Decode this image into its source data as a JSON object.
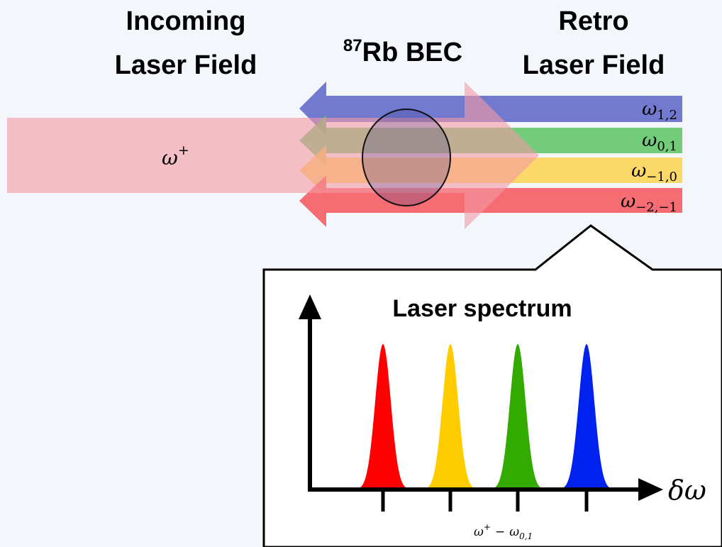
{
  "incoming_label": [
    "Incoming",
    "Laser Field"
  ],
  "bec_label": {
    "isotope": "87",
    "text": "Rb BEC"
  },
  "retro_label": [
    "Retro",
    "Laser Field"
  ],
  "incoming_beam": {
    "symbol": "ω",
    "sup": "+"
  },
  "retro_beams": [
    {
      "symbol": "ω",
      "sub": "1,2"
    },
    {
      "symbol": "ω",
      "sub": "0,1"
    },
    {
      "symbol": "ω",
      "sub": "−1,0"
    },
    {
      "symbol": "ω",
      "sub": "−2,−1"
    }
  ],
  "spectrum": {
    "title": "Laser spectrum",
    "axis_label": "δω",
    "tick_label": {
      "symbol": "ω",
      "sup": "+",
      "operator": "−",
      "symbol2": "ω",
      "sub": "0,1"
    }
  }
}
